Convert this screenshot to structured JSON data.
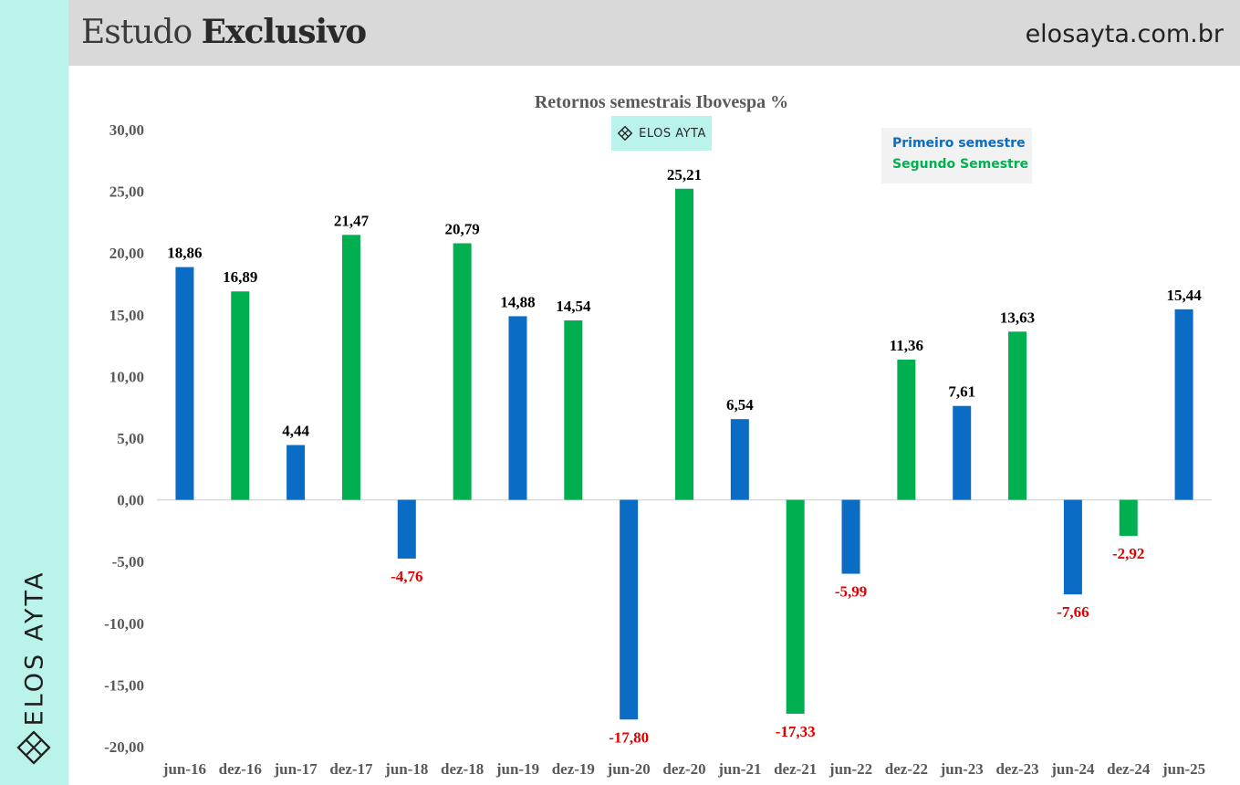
{
  "header": {
    "brand_regular": "Estudo",
    "brand_bold": "Exclusivo",
    "site": "elosayta.com.br"
  },
  "side": {
    "text": "ELOS AYTA",
    "logo_icon": "lattice-logo-icon"
  },
  "mini_logo": {
    "text": "ELOS AYTA",
    "icon": "lattice-logo-icon"
  },
  "colors": {
    "first_semester": "#0a6cc4",
    "second_semester": "#00b050",
    "negative_label": "#e00000",
    "positive_label": "#000000",
    "axis_text": "#595959",
    "side_strip": "#b9f3ea",
    "header": "#d9d9d9"
  },
  "chart_data": {
    "type": "bar",
    "title": "Retornos semestrais Ibovespa %",
    "categories": [
      "jun-16",
      "dez-16",
      "jun-17",
      "dez-17",
      "jun-18",
      "dez-18",
      "jun-19",
      "dez-19",
      "jun-20",
      "dez-20",
      "jun-21",
      "dez-21",
      "jun-22",
      "dez-22",
      "jun-23",
      "dez-23",
      "jun-24",
      "dez-24",
      "jun-25"
    ],
    "values": [
      18.86,
      16.89,
      4.44,
      21.47,
      -4.76,
      20.79,
      14.88,
      14.54,
      -17.8,
      25.21,
      6.54,
      -17.33,
      -5.99,
      11.36,
      7.61,
      13.63,
      -7.66,
      -2.92,
      15.44
    ],
    "value_labels": [
      "18,86",
      "16,89",
      "4,44",
      "21,47",
      "-4,76",
      "20,79",
      "14,88",
      "14,54",
      "-17,80",
      "25,21",
      "6,54",
      "-17,33",
      "-5,99",
      "11,36",
      "7,61",
      "13,63",
      "-7,66",
      "-2,92",
      "15,44"
    ],
    "series_by_index": [
      "first",
      "second",
      "first",
      "second",
      "first",
      "second",
      "first",
      "second",
      "first",
      "second",
      "first",
      "second",
      "first",
      "second",
      "first",
      "second",
      "first",
      "second",
      "first"
    ],
    "legend": [
      {
        "key": "first",
        "name": "Primeiro semestre"
      },
      {
        "key": "second",
        "name": "Segundo Semestre"
      }
    ],
    "legend_position": "top-right",
    "ylim": [
      -20,
      30
    ],
    "yticks": [
      30,
      25,
      20,
      15,
      10,
      5,
      0,
      -5,
      -10,
      -15,
      -20
    ],
    "ytick_labels": [
      "30,00",
      "25,00",
      "20,00",
      "15,00",
      "10,00",
      "5,00",
      "0,00",
      "-5,00",
      "-10,00",
      "-15,00",
      "-20,00"
    ],
    "grid": false,
    "xlabel": "",
    "ylabel": ""
  }
}
